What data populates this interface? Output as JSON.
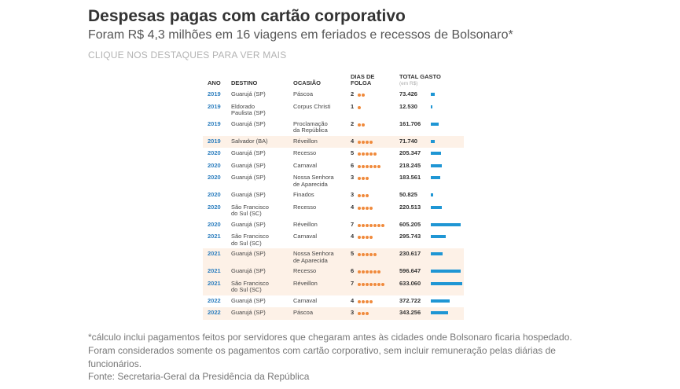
{
  "header": {
    "title": "Despesas pagas com cartão corporativo",
    "subtitle": "Foram R$ 4,3 milhões em 16 viagens em feriados e recessos de Bolsonaro*",
    "hint": "CLIQUE NOS DESTAQUES PARA VER MAIS"
  },
  "table_headers": {
    "ano": "ANO",
    "destino": "DESTINO",
    "ocasiao": "OCASIÃO",
    "dias": "DIAS DE FOLGA",
    "total": "TOTAL GASTO",
    "unit": "(em R$)"
  },
  "footer": {
    "footnote": "*cálculo inclui pagamentos feitos por servidores que chegaram antes às cidades onde Bolsonaro ficaria hospedado. Foram considerados somente os pagamentos com cartão corporativo, sem incluir remuneração pelas diárias de funcionários.",
    "source": "Fonte: Secretaria-Geral da Presidência da República"
  },
  "colors": {
    "year": "#2e7fbf",
    "dot": "#f08a3c",
    "bar": "#1f96d4",
    "highlight_row": "#fdf1e7"
  },
  "chart_data": {
    "type": "table",
    "title": "Despesas pagas com cartão corporativo",
    "subtitle": "Foram R$ 4,3 milhões em 16 viagens em feriados e recessos de Bolsonaro*",
    "columns": [
      "ANO",
      "DESTINO",
      "OCASIÃO",
      "DIAS DE FOLGA",
      "TOTAL GASTO"
    ],
    "rows": [
      {
        "ano": "2019",
        "destino": [
          "Guarujá (SP)"
        ],
        "ocasiao": [
          "Páscoa"
        ],
        "dias": 2,
        "total": "73.426",
        "value": 73426,
        "highlight": false
      },
      {
        "ano": "2019",
        "destino": [
          "Eldorado",
          "Paulista (SP)"
        ],
        "ocasiao": [
          "Corpus Christi"
        ],
        "dias": 1,
        "total": "12.530",
        "value": 12530,
        "highlight": false
      },
      {
        "ano": "2019",
        "destino": [
          "Guarujá (SP)"
        ],
        "ocasiao": [
          "Proclamação",
          "da República"
        ],
        "dias": 2,
        "total": "161.706",
        "value": 161706,
        "highlight": false
      },
      {
        "ano": "2019",
        "destino": [
          "Salvador (BA)"
        ],
        "ocasiao": [
          "Réveillon"
        ],
        "dias": 4,
        "total": "71.740",
        "value": 71740,
        "highlight": true
      },
      {
        "ano": "2020",
        "destino": [
          "Guarujá (SP)"
        ],
        "ocasiao": [
          "Recesso"
        ],
        "dias": 5,
        "total": "205.347",
        "value": 205347,
        "highlight": false
      },
      {
        "ano": "2020",
        "destino": [
          "Guarujá (SP)"
        ],
        "ocasiao": [
          "Carnaval"
        ],
        "dias": 6,
        "total": "218.245",
        "value": 218245,
        "highlight": false
      },
      {
        "ano": "2020",
        "destino": [
          "Guarujá (SP)"
        ],
        "ocasiao": [
          "Nossa Senhora",
          "de Aparecida"
        ],
        "dias": 3,
        "total": "183.561",
        "value": 183561,
        "highlight": false
      },
      {
        "ano": "2020",
        "destino": [
          "Guarujá (SP)"
        ],
        "ocasiao": [
          "Finados"
        ],
        "dias": 3,
        "total": "50.825",
        "value": 50825,
        "highlight": false
      },
      {
        "ano": "2020",
        "destino": [
          "São Francisco",
          "do Sul (SC)"
        ],
        "ocasiao": [
          "Recesso"
        ],
        "dias": 4,
        "total": "220.513",
        "value": 220513,
        "highlight": false
      },
      {
        "ano": "2020",
        "destino": [
          "Guarujá (SP)"
        ],
        "ocasiao": [
          "Réveillon"
        ],
        "dias": 7,
        "total": "605.205",
        "value": 605205,
        "highlight": false
      },
      {
        "ano": "2021",
        "destino": [
          "São Francisco",
          "do Sul (SC)"
        ],
        "ocasiao": [
          "Carnaval"
        ],
        "dias": 4,
        "total": "295.743",
        "value": 295743,
        "highlight": false
      },
      {
        "ano": "2021",
        "destino": [
          "Guarujá (SP)"
        ],
        "ocasiao": [
          "Nossa Senhora",
          "de Aparecida"
        ],
        "dias": 5,
        "total": "230.617",
        "value": 230617,
        "highlight": true
      },
      {
        "ano": "2021",
        "destino": [
          "Guarujá (SP)"
        ],
        "ocasiao": [
          "Recesso"
        ],
        "dias": 6,
        "total": "596.647",
        "value": 596647,
        "highlight": true
      },
      {
        "ano": "2021",
        "destino": [
          "São Francisco",
          "do Sul (SC)"
        ],
        "ocasiao": [
          "Réveillon"
        ],
        "dias": 7,
        "total": "633.060",
        "value": 633060,
        "highlight": true
      },
      {
        "ano": "2022",
        "destino": [
          "Guarujá (SP)"
        ],
        "ocasiao": [
          "Carnaval"
        ],
        "dias": 4,
        "total": "372.722",
        "value": 372722,
        "highlight": false
      },
      {
        "ano": "2022",
        "destino": [
          "Guarujá (SP)"
        ],
        "ocasiao": [
          "Páscoa"
        ],
        "dias": 3,
        "total": "343.256",
        "value": 343256,
        "highlight": true
      }
    ]
  }
}
